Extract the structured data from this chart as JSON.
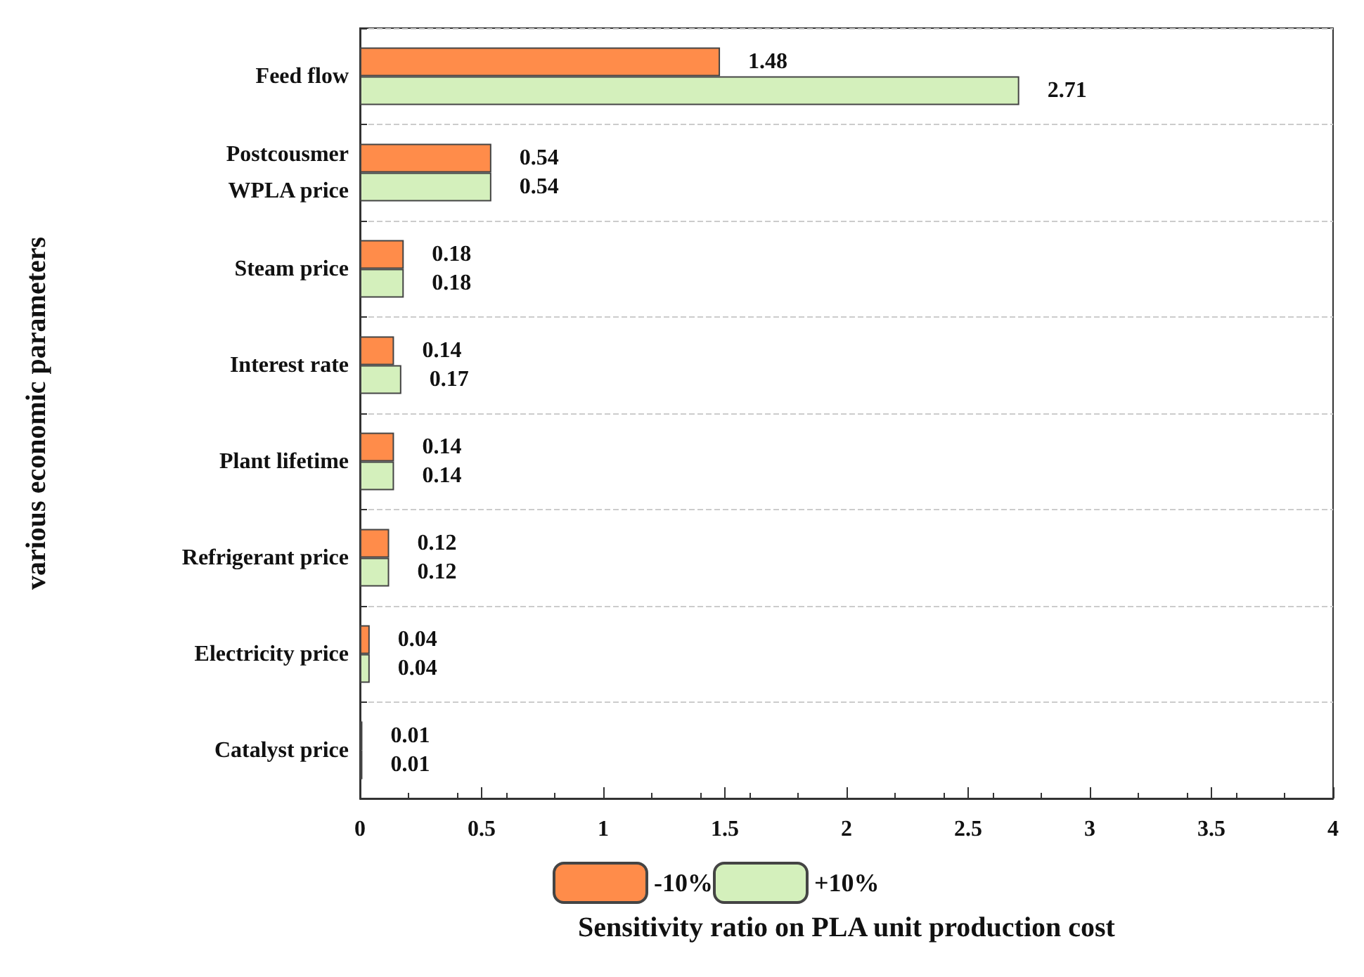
{
  "chart_data": {
    "type": "bar",
    "orientation": "horizontal",
    "xlabel": "Sensitivity ratio on PLA unit production cost",
    "ylabel": "various economic parameters",
    "categories": [
      "Feed flow",
      "Postcousmer\nWPLA price",
      "Steam price",
      "Interest rate",
      "Plant lifetime",
      "Refrigerant price",
      "Electricity price",
      "Catalyst price"
    ],
    "series": [
      {
        "name": "-10%",
        "color": "#ff8c4a",
        "values": [
          1.48,
          0.54,
          0.18,
          0.14,
          0.14,
          0.12,
          0.04,
          0.01
        ]
      },
      {
        "name": "+10%",
        "color": "#d4f0bc",
        "values": [
          2.71,
          0.54,
          0.18,
          0.17,
          0.14,
          0.12,
          0.04,
          0.01
        ]
      }
    ],
    "xlim": [
      0,
      4
    ],
    "xticks": [
      0,
      0.5,
      1,
      1.5,
      2,
      2.5,
      3,
      3.5,
      4
    ],
    "data_labels": true,
    "grid": "y",
    "legend": "bottom"
  }
}
